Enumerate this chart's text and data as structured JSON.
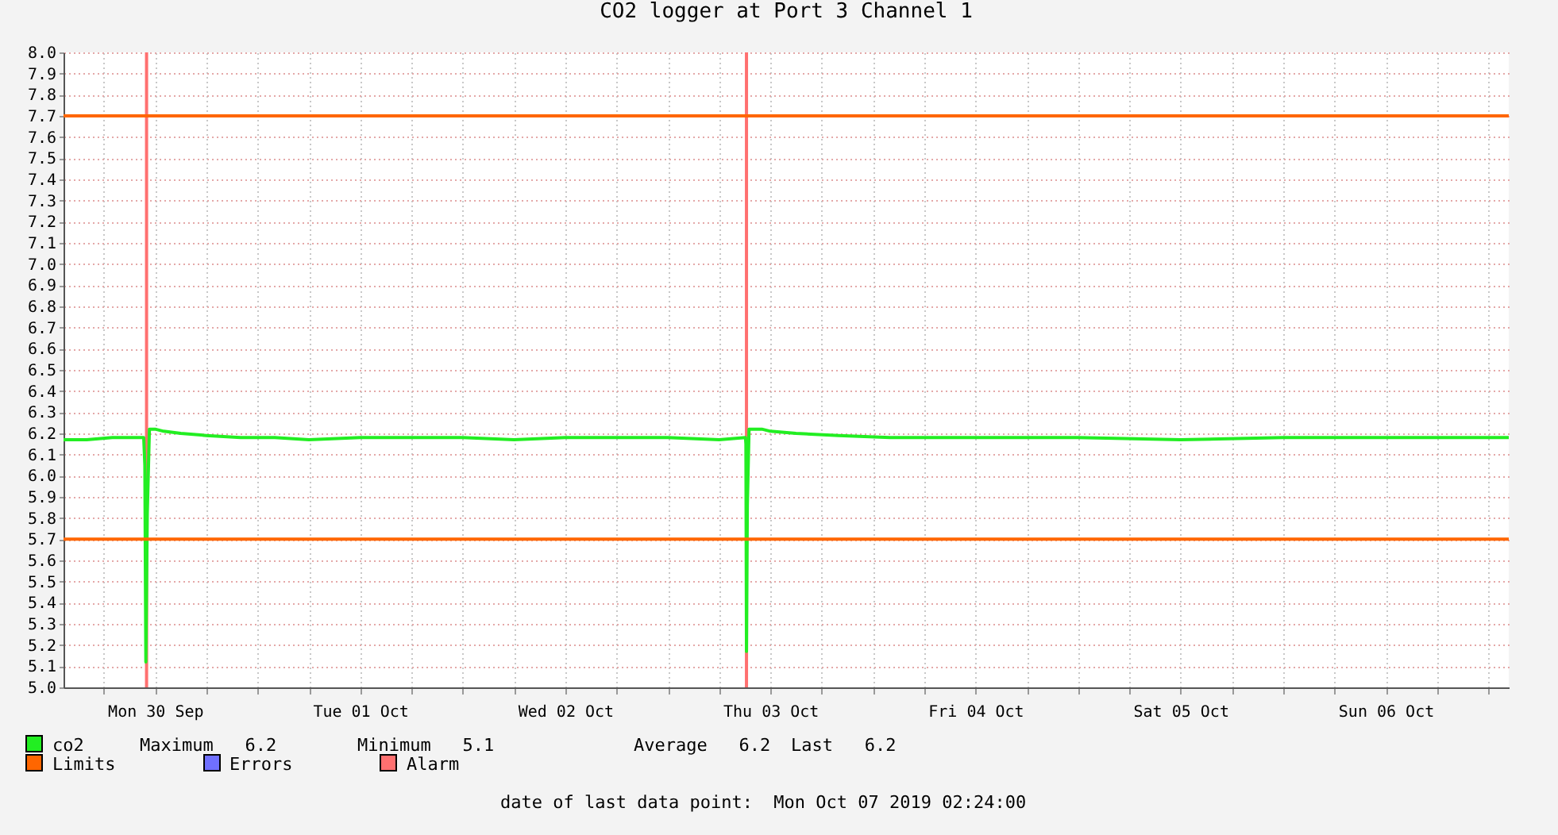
{
  "chart_data": {
    "type": "line",
    "title": "CO2 logger at Port 3 Channel 1",
    "xlim": [
      "2019-09-30T01:17",
      "2019-10-07T02:24"
    ],
    "xticks": [
      {
        "value": "2019-09-30T06:00",
        "label": null
      },
      {
        "value": "2019-09-30T12:00",
        "label": "Mon 30 Sep"
      },
      {
        "value": "2019-09-30T18:00",
        "label": null
      },
      {
        "value": "2019-10-01T00:00",
        "label": null
      },
      {
        "value": "2019-10-01T06:00",
        "label": null
      },
      {
        "value": "2019-10-01T12:00",
        "label": "Tue 01 Oct"
      },
      {
        "value": "2019-10-01T18:00",
        "label": null
      },
      {
        "value": "2019-10-02T00:00",
        "label": null
      },
      {
        "value": "2019-10-02T06:00",
        "label": null
      },
      {
        "value": "2019-10-02T12:00",
        "label": "Wed 02 Oct"
      },
      {
        "value": "2019-10-02T18:00",
        "label": null
      },
      {
        "value": "2019-10-03T00:00",
        "label": null
      },
      {
        "value": "2019-10-03T06:00",
        "label": null
      },
      {
        "value": "2019-10-03T12:00",
        "label": "Thu 03 Oct"
      },
      {
        "value": "2019-10-03T18:00",
        "label": null
      },
      {
        "value": "2019-10-04T00:00",
        "label": null
      },
      {
        "value": "2019-10-04T06:00",
        "label": null
      },
      {
        "value": "2019-10-04T12:00",
        "label": "Fri 04 Oct"
      },
      {
        "value": "2019-10-04T18:00",
        "label": null
      },
      {
        "value": "2019-10-05T00:00",
        "label": null
      },
      {
        "value": "2019-10-05T06:00",
        "label": null
      },
      {
        "value": "2019-10-05T12:00",
        "label": "Sat 05 Oct"
      },
      {
        "value": "2019-10-05T18:00",
        "label": null
      },
      {
        "value": "2019-10-06T00:00",
        "label": null
      },
      {
        "value": "2019-10-06T06:00",
        "label": null
      },
      {
        "value": "2019-10-06T12:00",
        "label": "Sun 06 Oct"
      },
      {
        "value": "2019-10-06T18:00",
        "label": null
      },
      {
        "value": "2019-10-07T00:00",
        "label": null
      }
    ],
    "ylim": [
      5.0,
      8.0
    ],
    "yticks": [
      {
        "value": 5,
        "label": "5.0"
      },
      5.1,
      5.2,
      5.3,
      5.4,
      5.5,
      5.6,
      5.7,
      5.8,
      5.9,
      {
        "value": 6,
        "label": "6.0"
      },
      6.1,
      6.2,
      6.3,
      6.4,
      6.5,
      6.6,
      6.7,
      6.8,
      6.9,
      {
        "value": 7,
        "label": "7.0"
      },
      7.1,
      7.2,
      7.3,
      7.4,
      7.5,
      7.6,
      7.7,
      7.8,
      7.9,
      {
        "value": 8,
        "label": "8.0"
      }
    ],
    "grid": true,
    "legend": "bottom",
    "x": [
      "2019-09-30T01:17",
      "2019-09-30T04:00",
      "2019-09-30T07:00",
      "2019-09-30T10:40",
      "2019-09-30T10:48",
      "2019-09-30T10:55",
      "2019-09-30T11:05",
      "2019-09-30T11:20",
      "2019-09-30T12:00",
      "2019-09-30T13:00",
      "2019-09-30T15:00",
      "2019-09-30T18:00",
      "2019-09-30T22:00",
      "2019-10-01T02:00",
      "2019-10-01T06:00",
      "2019-10-01T12:00",
      "2019-10-01T18:00",
      "2019-10-02T00:00",
      "2019-10-02T06:00",
      "2019-10-02T12:00",
      "2019-10-02T18:00",
      "2019-10-03T00:00",
      "2019-10-03T06:00",
      "2019-10-03T09:05",
      "2019-10-03T09:08",
      "2019-10-03T09:12",
      "2019-10-03T09:18",
      "2019-10-03T09:30",
      "2019-10-03T11:00",
      "2019-10-03T12:00",
      "2019-10-03T15:00",
      "2019-10-03T20:00",
      "2019-10-04T02:00",
      "2019-10-04T12:00",
      "2019-10-05T00:00",
      "2019-10-05T12:00",
      "2019-10-06T00:00",
      "2019-10-06T12:00",
      "2019-10-07T00:00",
      "2019-10-07T02:24"
    ],
    "series": [
      {
        "name": "co2",
        "color": "#22ee22",
        "values": [
          6.17,
          6.17,
          6.18,
          6.18,
          6.05,
          5.12,
          5.82,
          6.22,
          6.22,
          6.21,
          6.2,
          6.19,
          6.18,
          6.18,
          6.17,
          6.18,
          6.18,
          6.18,
          6.17,
          6.18,
          6.18,
          6.18,
          6.17,
          6.18,
          6.15,
          5.17,
          5.86,
          6.22,
          6.22,
          6.21,
          6.2,
          6.19,
          6.18,
          6.18,
          6.18,
          6.17,
          6.18,
          6.18,
          6.18,
          6.18
        ]
      },
      {
        "name": "Limits",
        "color": "#ff6600",
        "x": [
          "2019-09-30T01:17",
          "2019-10-07T02:24"
        ],
        "values": [
          7.7,
          7.7
        ]
      },
      {
        "color": "#ff6600",
        "x": [
          "2019-09-30T01:17",
          "2019-10-07T02:24"
        ],
        "values": [
          5.7,
          5.7
        ]
      },
      {
        "name": "Errors",
        "color": "#7070ff",
        "values": [
          null,
          null,
          null,
          null,
          null,
          null,
          null,
          null,
          null,
          null,
          null,
          null,
          null,
          null,
          null,
          null,
          null,
          null,
          null,
          null,
          null,
          null,
          null,
          null,
          null,
          null,
          null,
          null,
          null,
          null,
          null,
          null,
          null,
          null,
          null,
          null,
          null,
          null,
          null,
          null
        ]
      }
    ],
    "ref_lines": [
      {
        "axis": "x",
        "value": "2019-09-30T11:00",
        "label": "Alarm",
        "color": "#ff7070"
      },
      {
        "axis": "x",
        "value": "2019-10-03T09:12",
        "color": "#ff7070"
      }
    ],
    "annotations": [
      "Maximum   6.2",
      "Minimum   5.1",
      "Average   6.2",
      "Last   6.2",
      "date of last data point:  Mon Oct 07 2019 02:24:00"
    ]
  }
}
